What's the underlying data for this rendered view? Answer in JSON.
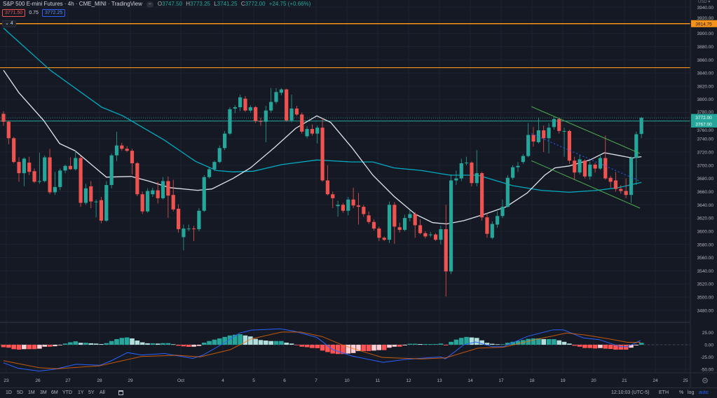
{
  "header": {
    "title": "S&P 500 E-mini Futures · 4h · CME_MINI · TradingView",
    "hide_icon": "minus-circle-icon",
    "open_label": "O",
    "open": "3747.50",
    "high_label": "H",
    "high": "3773.25",
    "low_label": "L",
    "low": "3741.25",
    "close_label": "C",
    "close": "3772.00",
    "change": "+24.75 (+0.66%)",
    "bid": "3771.50",
    "spread": "0.75",
    "ask": "3772.25",
    "indicators_collapsed": "⌄ 4"
  },
  "price_axis": {
    "currency": "USD ▾",
    "ticks": [
      "3940.00",
      "3920.00",
      "3900.00",
      "3880.00",
      "3860.00",
      "3840.00",
      "3820.00",
      "3800.00",
      "3780.00",
      "3760.00",
      "3740.00",
      "3720.00",
      "3700.00",
      "3680.00",
      "3660.00",
      "3640.00",
      "3620.00",
      "3600.00",
      "3580.00",
      "3560.00",
      "3540.00",
      "3520.00",
      "3500.00",
      "3480.00"
    ],
    "labels": {
      "alert_level": "3914.75",
      "last_price": "3772.00",
      "level_line": "3767.00"
    }
  },
  "macd_axis": {
    "ticks": [
      "25.00",
      "0.00",
      "-25.00",
      "-50.00"
    ]
  },
  "time_axis": {
    "labels": [
      "23",
      "26",
      "27",
      "28",
      "29",
      "Oct",
      "4",
      "5",
      "6",
      "7",
      "10",
      "11",
      "12",
      "13",
      "14",
      "17",
      "18",
      "19",
      "20",
      "21",
      "24",
      "25"
    ],
    "settings_icon": "gear-icon"
  },
  "toolbar": {
    "timeframes": [
      "1D",
      "5D",
      "1M",
      "3M",
      "6M",
      "YTD",
      "1Y",
      "5Y",
      "All"
    ],
    "date_range_icon": "calendar-icon",
    "clock": "12:10:03 (UTC-5)",
    "session": "ETH",
    "percent": "%",
    "log": "log",
    "auto": "auto"
  },
  "colors": {
    "up": "#26a69a",
    "down": "#ef5350",
    "sma_fast": "#e0e3eb",
    "sma_slow": "#00acc1",
    "horizontal": "#f7931a",
    "channel": "#4caf50",
    "macd": "#2962ff",
    "signal": "#ff6d00",
    "hist_up_strong": "#26a69a",
    "hist_up_weak": "#b2dfdb",
    "hist_dn_weak": "#ffcdd2",
    "hist_dn_strong": "#ff5252"
  },
  "chart_data": {
    "type": "candlestick",
    "symbol": "S&P 500 E-mini Futures",
    "interval": "4h",
    "ylim": [
      3470,
      3945
    ],
    "candles_ohlc": [
      [
        3778,
        3782,
        3760,
        3766
      ],
      [
        3766,
        3768,
        3732,
        3741
      ],
      [
        3741,
        3743,
        3703,
        3705
      ],
      [
        3705,
        3712,
        3675,
        3688
      ],
      [
        3688,
        3712,
        3668,
        3710
      ],
      [
        3704,
        3713,
        3685,
        3690
      ],
      [
        3691,
        3695,
        3673,
        3675
      ],
      [
        3675,
        3719,
        3672,
        3676
      ],
      [
        3676,
        3715,
        3674,
        3712
      ],
      [
        3712,
        3725,
        3656,
        3659
      ],
      [
        3659,
        3690,
        3655,
        3667
      ],
      [
        3667,
        3695,
        3662,
        3692
      ],
      [
        3692,
        3701,
        3688,
        3699
      ],
      [
        3699,
        3712,
        3693,
        3694
      ],
      [
        3694,
        3722,
        3692,
        3711
      ],
      [
        3711,
        3714,
        3637,
        3643
      ],
      [
        3643,
        3672,
        3640,
        3665
      ],
      [
        3668,
        3676,
        3635,
        3645
      ],
      [
        3645,
        3648,
        3621,
        3645
      ],
      [
        3647,
        3652,
        3612,
        3616
      ],
      [
        3616,
        3676,
        3614,
        3670
      ],
      [
        3670,
        3718,
        3665,
        3715
      ],
      [
        3715,
        3751,
        3706,
        3730
      ],
      [
        3730,
        3734,
        3722,
        3725
      ],
      [
        3725,
        3729,
        3720,
        3722
      ],
      [
        3722,
        3725,
        3686,
        3703
      ],
      [
        3703,
        3705,
        3653,
        3656
      ],
      [
        3656,
        3660,
        3626,
        3630
      ],
      [
        3630,
        3665,
        3628,
        3661
      ],
      [
        3656,
        3666,
        3652,
        3662
      ],
      [
        3662,
        3675,
        3642,
        3650
      ],
      [
        3650,
        3682,
        3648,
        3676
      ],
      [
        3676,
        3683,
        3620,
        3654
      ],
      [
        3655,
        3678,
        3630,
        3633
      ],
      [
        3634,
        3641,
        3598,
        3603
      ],
      [
        3591,
        3610,
        3571,
        3604
      ],
      [
        3604,
        3610,
        3600,
        3604
      ],
      [
        3604,
        3608,
        3585,
        3603
      ],
      [
        3603,
        3635,
        3600,
        3631
      ],
      [
        3631,
        3685,
        3629,
        3682
      ],
      [
        3682,
        3697,
        3680,
        3694
      ],
      [
        3694,
        3707,
        3691,
        3705
      ],
      [
        3705,
        3730,
        3703,
        3726
      ],
      [
        3726,
        3752,
        3723,
        3748
      ],
      [
        3748,
        3788,
        3746,
        3785
      ],
      [
        3786,
        3791,
        3779,
        3788
      ],
      [
        3788,
        3807,
        3782,
        3803
      ],
      [
        3801,
        3805,
        3781,
        3783
      ],
      [
        3783,
        3791,
        3780,
        3788
      ],
      [
        3788,
        3790,
        3764,
        3767
      ],
      [
        3767,
        3772,
        3760,
        3766
      ],
      [
        3766,
        3790,
        3735,
        3783
      ],
      [
        3783,
        3817,
        3780,
        3796
      ],
      [
        3796,
        3817,
        3793,
        3811
      ],
      [
        3810,
        3817,
        3806,
        3815
      ],
      [
        3815,
        3816,
        3766,
        3768
      ],
      [
        3768,
        3807,
        3765,
        3786
      ],
      [
        3786,
        3790,
        3775,
        3777
      ],
      [
        3777,
        3780,
        3748,
        3751
      ],
      [
        3744,
        3759,
        3741,
        3755
      ],
      [
        3755,
        3762,
        3745,
        3748
      ],
      [
        3748,
        3760,
        3733,
        3757
      ],
      [
        3757,
        3771,
        3675,
        3677
      ],
      [
        3677,
        3700,
        3654,
        3656
      ],
      [
        3656,
        3660,
        3635,
        3650
      ],
      [
        3638,
        3646,
        3622,
        3640
      ],
      [
        3640,
        3643,
        3628,
        3631
      ],
      [
        3631,
        3652,
        3624,
        3648
      ],
      [
        3648,
        3666,
        3635,
        3639
      ],
      [
        3639,
        3658,
        3610,
        3637
      ],
      [
        3637,
        3640,
        3622,
        3626
      ],
      [
        3624,
        3630,
        3611,
        3614
      ],
      [
        3614,
        3618,
        3601,
        3604
      ],
      [
        3604,
        3607,
        3585,
        3590
      ],
      [
        3590,
        3592,
        3585,
        3587
      ],
      [
        3587,
        3645,
        3582,
        3640
      ],
      [
        3640,
        3644,
        3581,
        3607
      ],
      [
        3606,
        3613,
        3598,
        3602
      ],
      [
        3602,
        3625,
        3600,
        3620
      ],
      [
        3620,
        3632,
        3615,
        3626
      ],
      [
        3626,
        3629,
        3590,
        3609
      ],
      [
        3609,
        3618,
        3595,
        3597
      ],
      [
        3597,
        3600,
        3589,
        3592
      ],
      [
        3595,
        3599,
        3591,
        3595
      ],
      [
        3595,
        3597,
        3585,
        3587
      ],
      [
        3587,
        3608,
        3580,
        3603
      ],
      [
        3603,
        3640,
        3501,
        3539
      ],
      [
        3539,
        3686,
        3535,
        3677
      ],
      [
        3677,
        3692,
        3670,
        3680
      ],
      [
        3680,
        3710,
        3676,
        3703
      ],
      [
        3704,
        3713,
        3700,
        3704
      ],
      [
        3704,
        3706,
        3668,
        3673
      ],
      [
        3673,
        3723,
        3668,
        3688
      ],
      [
        3688,
        3690,
        3616,
        3621
      ],
      [
        3621,
        3628,
        3590,
        3596
      ],
      [
        3590,
        3615,
        3588,
        3611
      ],
      [
        3610,
        3630,
        3605,
        3623
      ],
      [
        3623,
        3648,
        3620,
        3637
      ],
      [
        3637,
        3685,
        3636,
        3681
      ],
      [
        3681,
        3700,
        3678,
        3697
      ],
      [
        3697,
        3705,
        3690,
        3699
      ],
      [
        3705,
        3717,
        3702,
        3714
      ],
      [
        3714,
        3764,
        3712,
        3746
      ],
      [
        3746,
        3758,
        3728,
        3736
      ],
      [
        3735,
        3772,
        3733,
        3753
      ],
      [
        3753,
        3760,
        3720,
        3741
      ],
      [
        3741,
        3764,
        3718,
        3757
      ],
      [
        3758,
        3773,
        3754,
        3770
      ],
      [
        3770,
        3772,
        3748,
        3752
      ],
      [
        3752,
        3757,
        3713,
        3752
      ],
      [
        3752,
        3754,
        3702,
        3707
      ],
      [
        3707,
        3713,
        3678,
        3689
      ],
      [
        3689,
        3716,
        3686,
        3709
      ],
      [
        3707,
        3709,
        3680,
        3683
      ],
      [
        3683,
        3706,
        3678,
        3701
      ],
      [
        3701,
        3704,
        3689,
        3695
      ],
      [
        3695,
        3716,
        3693,
        3711
      ],
      [
        3711,
        3745,
        3678,
        3680
      ],
      [
        3681,
        3684,
        3666,
        3675
      ],
      [
        3677,
        3690,
        3660,
        3664
      ],
      [
        3664,
        3670,
        3657,
        3661
      ],
      [
        3661,
        3680,
        3650,
        3655
      ],
      [
        3655,
        3713,
        3643,
        3711
      ],
      [
        3711,
        3751,
        3670,
        3747
      ],
      [
        3747.5,
        3773.25,
        3741.25,
        3772
      ]
    ],
    "sma_fast": [
      [
        0,
        3844
      ],
      [
        3,
        3810
      ],
      [
        7.8,
        3768
      ],
      [
        10.9,
        3733
      ],
      [
        13.9,
        3722
      ],
      [
        20,
        3682
      ],
      [
        24.8,
        3683
      ],
      [
        28.2,
        3676
      ],
      [
        32.3,
        3666
      ],
      [
        37.7,
        3662
      ],
      [
        40.5,
        3664
      ],
      [
        44.6,
        3680
      ],
      [
        48,
        3696
      ],
      [
        52.7,
        3727
      ],
      [
        56.8,
        3756
      ],
      [
        60.9,
        3775
      ],
      [
        63.6,
        3765
      ],
      [
        67.7,
        3727
      ],
      [
        71.8,
        3685
      ],
      [
        75.9,
        3653
      ],
      [
        80,
        3626
      ],
      [
        83.4,
        3613
      ],
      [
        86.1,
        3611
      ],
      [
        89.5,
        3616
      ],
      [
        93.6,
        3626
      ],
      [
        97.7,
        3637
      ],
      [
        101.8,
        3658
      ],
      [
        105.2,
        3685
      ],
      [
        107.2,
        3696
      ],
      [
        110,
        3699
      ],
      [
        114,
        3708
      ],
      [
        116.8,
        3719
      ],
      [
        119.5,
        3715
      ],
      [
        122.2,
        3711
      ],
      [
        124,
        3713
      ]
    ],
    "sma_slow": [
      [
        0,
        3908
      ],
      [
        9.1,
        3844
      ],
      [
        19.1,
        3788
      ],
      [
        23.2,
        3775
      ],
      [
        31.3,
        3738
      ],
      [
        37.3,
        3706
      ],
      [
        41.4,
        3692
      ],
      [
        44.6,
        3690
      ],
      [
        48.6,
        3691
      ],
      [
        54.1,
        3701
      ],
      [
        60.9,
        3708
      ],
      [
        67.7,
        3705
      ],
      [
        71.8,
        3705
      ],
      [
        75.9,
        3696
      ],
      [
        81.3,
        3692
      ],
      [
        86.8,
        3685
      ],
      [
        92.2,
        3685
      ],
      [
        99,
        3669
      ],
      [
        104.5,
        3662
      ],
      [
        110,
        3659
      ],
      [
        115.4,
        3662
      ],
      [
        119.5,
        3666
      ],
      [
        124,
        3674
      ]
    ],
    "horizontal_levels": [
      3914.75,
      3848,
      3767
    ],
    "last_price": 3772,
    "channel": {
      "upper": [
        [
          102.6,
          3789
        ],
        [
          123.7,
          3718
        ]
      ],
      "lower": [
        [
          102.6,
          3707
        ],
        [
          123.7,
          3635
        ]
      ],
      "mid": [
        [
          102.6,
          3748
        ],
        [
          123.7,
          3676
        ]
      ]
    },
    "macd": {
      "ylim": [
        -55,
        35
      ],
      "histogram": [
        -5,
        -6,
        -9,
        -10,
        -9,
        -9,
        -9,
        -8,
        -4,
        -4,
        -3,
        -0.5,
        2.4,
        5,
        7,
        4,
        4,
        3,
        2.4,
        1.4,
        3.3,
        7.6,
        11.5,
        14,
        15,
        13,
        8.6,
        5,
        3,
        3,
        2.4,
        3.3,
        3.3,
        1,
        -2,
        -3.3,
        -4.3,
        -4,
        -2.4,
        4.3,
        7.6,
        10.5,
        13,
        16,
        19,
        20.5,
        21.5,
        19,
        17,
        12,
        9.6,
        8.6,
        7.6,
        7.6,
        7.6,
        4.3,
        2.4,
        -0.5,
        -4,
        -5,
        -6.7,
        -7,
        -12,
        -15,
        -18,
        -19,
        -19,
        -18,
        -17,
        -13,
        -13,
        -13,
        -12,
        -11,
        -11,
        -6,
        -4,
        -4,
        -1.4,
        2,
        2,
        1.4,
        1.4,
        1.4,
        1.4,
        2.4,
        -1.4,
        6,
        10.5,
        14,
        16,
        15,
        14,
        9,
        4,
        2,
        1,
        1,
        4,
        6,
        8,
        9.6,
        12,
        13,
        13,
        11.5,
        11.5,
        11.5,
        9,
        6,
        2.4,
        -2,
        -4,
        -6.7,
        -6.7,
        -7.6,
        -6.7,
        -8,
        -8.6,
        -10,
        -10,
        -10,
        -6,
        -1.4,
        4
      ],
      "macd_line": [
        [
          0,
          -37
        ],
        [
          2.8,
          -48
        ],
        [
          6.9,
          -54
        ],
        [
          10,
          -50
        ],
        [
          14.1,
          -40
        ],
        [
          18.7,
          -42
        ],
        [
          20.9,
          -33
        ],
        [
          24.1,
          -16
        ],
        [
          26.8,
          -21
        ],
        [
          31.3,
          -18
        ],
        [
          34.1,
          -23
        ],
        [
          36.8,
          -28
        ],
        [
          38.7,
          -21.5
        ],
        [
          42.3,
          0
        ],
        [
          45.9,
          24
        ],
        [
          48.2,
          30
        ],
        [
          53.7,
          32.5
        ],
        [
          56.4,
          28
        ],
        [
          60.9,
          15
        ],
        [
          64,
          -10
        ],
        [
          67.7,
          -23
        ],
        [
          73.8,
          -36
        ],
        [
          78.2,
          -30
        ],
        [
          85,
          -25
        ],
        [
          85.9,
          -29
        ],
        [
          89.5,
          0
        ],
        [
          91.8,
          5.7
        ],
        [
          95,
          -4
        ],
        [
          97.2,
          -4
        ],
        [
          101.8,
          17
        ],
        [
          106.8,
          30.6
        ],
        [
          108.8,
          30.6
        ],
        [
          112.7,
          14
        ],
        [
          115.8,
          10.5
        ],
        [
          119.9,
          -4
        ],
        [
          121.3,
          -4
        ],
        [
          123.8,
          8.6
        ]
      ],
      "signal_line": [
        [
          0,
          -32.5
        ],
        [
          6.9,
          -47
        ],
        [
          10.5,
          -49
        ],
        [
          18.7,
          -43
        ],
        [
          26.8,
          -24
        ],
        [
          33.6,
          -21.5
        ],
        [
          38.2,
          -25
        ],
        [
          44.1,
          -10
        ],
        [
          48.2,
          12
        ],
        [
          54.1,
          26
        ],
        [
          57.8,
          26
        ],
        [
          61.9,
          17
        ],
        [
          66,
          -1
        ],
        [
          67.7,
          -7
        ],
        [
          73.6,
          -26
        ],
        [
          81.3,
          -29
        ],
        [
          85.9,
          -27
        ],
        [
          92.2,
          -7
        ],
        [
          97.2,
          -5
        ],
        [
          104,
          12
        ],
        [
          109.5,
          24
        ],
        [
          113.1,
          20
        ],
        [
          117.7,
          12
        ],
        [
          121.3,
          5
        ],
        [
          123.8,
          5
        ]
      ]
    }
  }
}
